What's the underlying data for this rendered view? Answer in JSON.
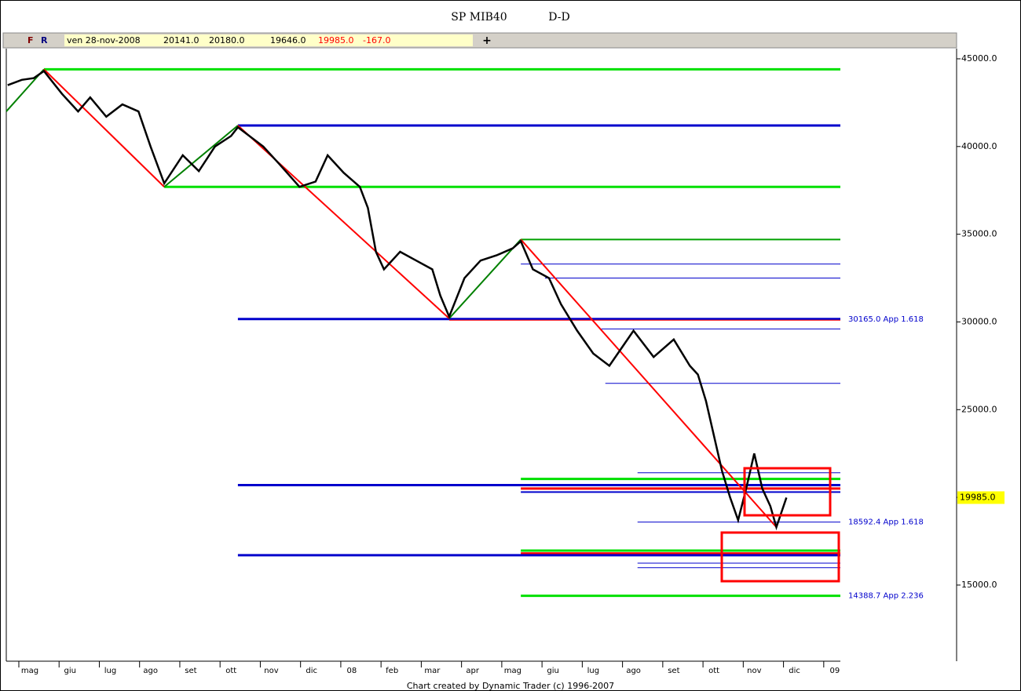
{
  "chart_data": {
    "type": "line",
    "title": "SP MIB40",
    "subtitle": "D-D",
    "footer": "Chart created by Dynamic Trader (c) 1996-2007",
    "quote": {
      "flags": [
        "F",
        "R"
      ],
      "date": "ven 28-nov-2008",
      "open": {
        "value": 20141,
        "label": "20141.0"
      },
      "high": {
        "value": 20180,
        "label": "20180.0"
      },
      "low": {
        "value": 19646,
        "label": "19646.0"
      },
      "close": {
        "value": 19985,
        "label": "19985.0"
      },
      "change": {
        "value": -167,
        "label": "-167.0"
      }
    },
    "last_price": {
      "value": 19985,
      "label": "19985.0"
    },
    "categories": [
      "mag",
      "giu",
      "lug",
      "ago",
      "set",
      "ott",
      "nov",
      "dic",
      "08",
      "feb",
      "mar",
      "apr",
      "mag",
      "giu",
      "lug",
      "ago",
      "set",
      "ott",
      "nov",
      "dic",
      "09"
    ],
    "xlim": [
      -0.585,
      20.14
    ],
    "ylim": [
      10660,
      45580
    ],
    "yticks": [
      {
        "value": 15000,
        "label": "15000.0"
      },
      {
        "value": 20000,
        "label": "20000.0"
      },
      {
        "value": 25000,
        "label": "25000.0"
      },
      {
        "value": 30000,
        "label": "30000.0"
      },
      {
        "value": 35000,
        "label": "35000.0"
      },
      {
        "value": 40000,
        "label": "40000.0"
      },
      {
        "value": 45000,
        "label": "45000.0"
      }
    ],
    "series": [
      {
        "name": "SP MIB40",
        "color": "#000000",
        "x": [
          -0.55,
          -0.2,
          0.1,
          0.35,
          0.8,
          1.2,
          1.5,
          1.9,
          2.3,
          2.7,
          3.0,
          3.34,
          3.8,
          4.2,
          4.6,
          5.0,
          5.17,
          5.8,
          6.2,
          6.7,
          7.1,
          7.4,
          7.8,
          8.2,
          8.4,
          8.6,
          8.8,
          9.2,
          9.6,
          10.0,
          10.2,
          10.42,
          10.8,
          11.2,
          11.6,
          12.0,
          12.2,
          12.5,
          12.9,
          13.2,
          13.6,
          14.0,
          14.4,
          14.7,
          15.0,
          15.5,
          16.0,
          16.4,
          16.6,
          16.8,
          17.0,
          17.2,
          17.4,
          17.6,
          17.8,
          18.0,
          18.2,
          18.4,
          18.55,
          18.8
        ],
        "values": [
          43500,
          43800,
          43900,
          44300,
          43000,
          42000,
          42800,
          41700,
          42400,
          42000,
          40000,
          37900,
          39500,
          38600,
          40000,
          40600,
          41100,
          40000,
          39000,
          37700,
          38000,
          39500,
          38500,
          37700,
          36500,
          34000,
          33000,
          34000,
          33500,
          33000,
          31500,
          30300,
          32500,
          33500,
          33800,
          34200,
          34600,
          33000,
          32500,
          31000,
          29500,
          28200,
          27500,
          28500,
          29500,
          28000,
          29000,
          27500,
          27000,
          25500,
          23500,
          21500,
          20000,
          18700,
          20500,
          22500,
          20500,
          19500,
          18300,
          19985
        ]
      }
    ],
    "swings": [
      {
        "color": "#008000",
        "x": [
          -0.585,
          0.35
        ],
        "y": [
          42000,
          44400
        ]
      },
      {
        "color": "#ff0000",
        "x": [
          0.35,
          3.34
        ],
        "y": [
          44400,
          37700
        ]
      },
      {
        "color": "#008000",
        "x": [
          3.34,
          5.17
        ],
        "y": [
          37700,
          41200
        ]
      },
      {
        "color": "#ff0000",
        "x": [
          5.17,
          10.42
        ],
        "y": [
          41200,
          30200
        ]
      },
      {
        "color": "#008000",
        "x": [
          10.42,
          12.2
        ],
        "y": [
          30200,
          34700
        ]
      },
      {
        "color": "#ff0000",
        "x": [
          12.2,
          18.55
        ],
        "y": [
          34700,
          18300
        ]
      }
    ],
    "levels": [
      {
        "value": 44400,
        "color": "#00e000",
        "width": 3,
        "from": 0.35
      },
      {
        "value": 41200,
        "color": "#0000cc",
        "width": 3,
        "from": 5.17
      },
      {
        "value": 37700,
        "color": "#00e000",
        "width": 3,
        "from": 3.34
      },
      {
        "value": 34700,
        "color": "#00a000",
        "width": 2,
        "from": 12.2
      },
      {
        "value": 33300,
        "color": "#0000cc",
        "width": 1,
        "from": 12.2
      },
      {
        "value": 32500,
        "color": "#0000cc",
        "width": 1,
        "from": 12.8
      },
      {
        "value": 30165,
        "color": "#0000cc",
        "width": 3,
        "from": 5.17,
        "label": "30165.0 App 1.618"
      },
      {
        "value": 30100,
        "color": "#ff0000",
        "width": 1,
        "from": 10.42
      },
      {
        "value": 29600,
        "color": "#0000cc",
        "width": 1,
        "from": 14.2
      },
      {
        "value": 26500,
        "color": "#0000cc",
        "width": 1,
        "from": 14.3
      },
      {
        "value": 21400,
        "color": "#0000cc",
        "width": 1,
        "from": 15.1
      },
      {
        "value": 21050,
        "color": "#00e000",
        "width": 3,
        "from": 12.2
      },
      {
        "value": 20700,
        "color": "#0000cc",
        "width": 3,
        "from": 5.17
      },
      {
        "value": 20500,
        "color": "#ff0000",
        "width": 3,
        "from": 12.2
      },
      {
        "value": 20300,
        "color": "#0000cc",
        "width": 2,
        "from": 12.2
      },
      {
        "value": 18592.4,
        "color": "#0000cc",
        "width": 1,
        "from": 15.1,
        "label": "18592.4 App 1.618"
      },
      {
        "value": 16961.8,
        "color": "#00e000",
        "width": 3,
        "from": 12.2
      },
      {
        "value": 16800,
        "color": "#ff0000",
        "width": 3,
        "from": 12.2
      },
      {
        "value": 16700,
        "color": "#0000cc",
        "width": 3,
        "from": 5.17
      },
      {
        "value": 16250,
        "color": "#0000cc",
        "width": 1,
        "from": 15.1
      },
      {
        "value": 15994,
        "color": "#0000cc",
        "width": 1,
        "from": 15.1
      },
      {
        "value": 14388.7,
        "color": "#00e000",
        "width": 3,
        "from": 12.2,
        "label": "14388.7 App 2.236"
      }
    ]
  }
}
